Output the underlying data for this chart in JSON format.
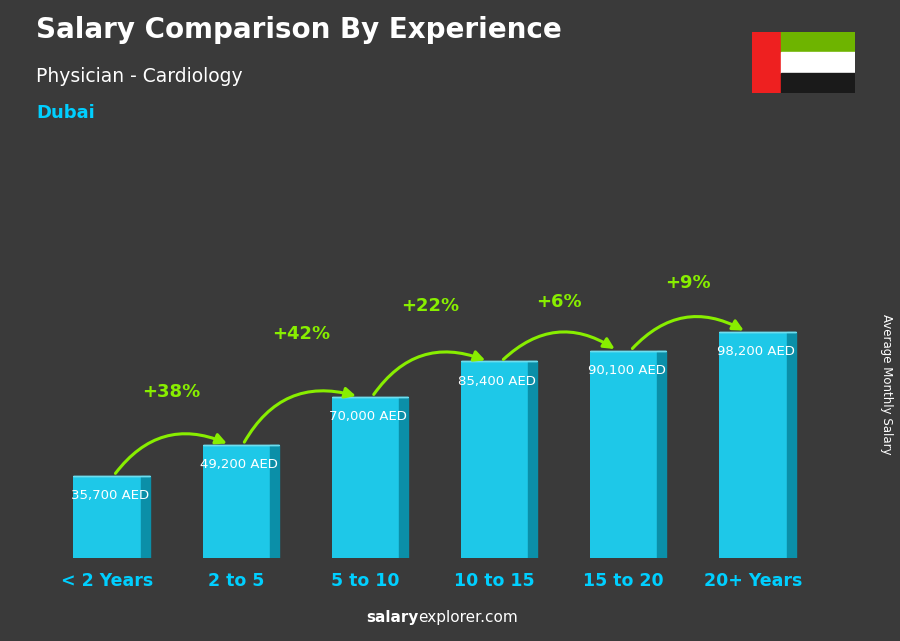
{
  "title_main": "Salary Comparison By Experience",
  "title_sub": "Physician - Cardiology",
  "title_city": "Dubai",
  "categories": [
    "< 2 Years",
    "2 to 5",
    "5 to 10",
    "10 to 15",
    "15 to 20",
    "20+ Years"
  ],
  "values": [
    35700,
    49200,
    70000,
    85400,
    90100,
    98200
  ],
  "value_labels": [
    "35,700 AED",
    "49,200 AED",
    "70,000 AED",
    "85,400 AED",
    "90,100 AED",
    "98,200 AED"
  ],
  "pct_changes": [
    "+38%",
    "+42%",
    "+22%",
    "+6%",
    "+9%"
  ],
  "bar_color_face": "#1EC8E8",
  "bar_color_light": "#6EDDEE",
  "bar_color_dark": "#0B8FA8",
  "bg_color": "#3a3a3a",
  "text_color_white": "#ffffff",
  "text_color_cyan": "#00CFFF",
  "text_color_green": "#88EE00",
  "ylabel": "Average Monthly Salary",
  "footer_salary": "salary",
  "footer_explorer": "explorer",
  "footer_com": ".com",
  "ylim": [
    0,
    145000
  ],
  "flag_red": "#EE2020",
  "flag_green": "#6EB400",
  "flag_white": "#FFFFFF",
  "flag_black": "#1a1a1a"
}
